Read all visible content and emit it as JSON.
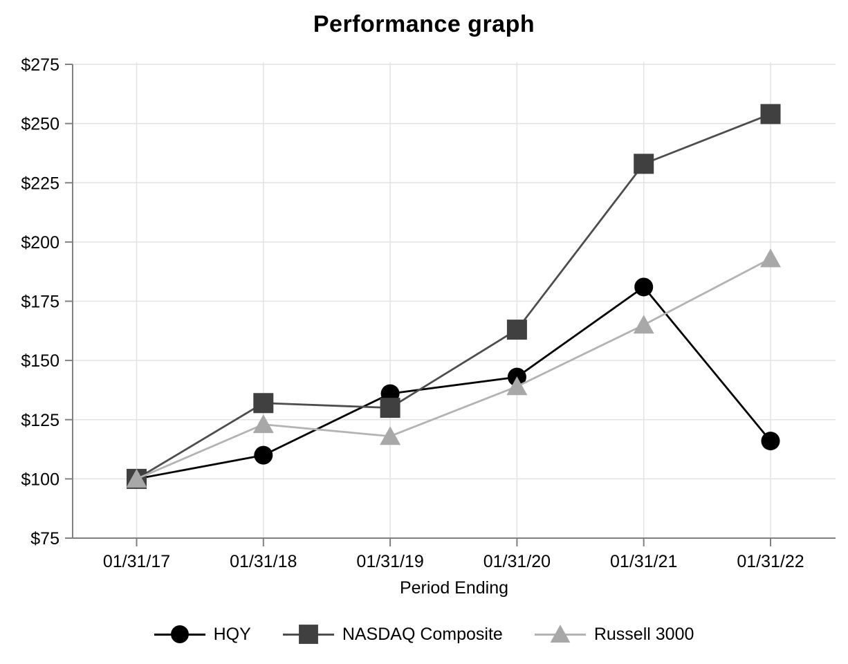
{
  "chart_data": {
    "type": "line",
    "title": "Performance graph",
    "xlabel": "Period Ending",
    "ylabel": "",
    "categories": [
      "01/31/17",
      "01/31/18",
      "01/31/19",
      "01/31/20",
      "01/31/21",
      "01/31/22"
    ],
    "series": [
      {
        "name": "HQY",
        "marker": "circle",
        "marker_color": "#000000",
        "line_color": "#000000",
        "values": [
          100,
          110,
          136,
          143,
          181,
          116
        ]
      },
      {
        "name": "NASDAQ Composite",
        "marker": "square",
        "marker_color": "#404040",
        "line_color": "#4d4d4d",
        "values": [
          100,
          132,
          130,
          163,
          233,
          254
        ]
      },
      {
        "name": "Russell 3000",
        "marker": "triangle",
        "marker_color": "#a8a8a8",
        "line_color": "#b3b3b3",
        "values": [
          100,
          123,
          118,
          139,
          165,
          193
        ]
      }
    ],
    "ylim": [
      75,
      275
    ],
    "y_ticks": [
      75,
      100,
      125,
      150,
      175,
      200,
      225,
      250,
      275
    ],
    "y_tick_labels": [
      "$75",
      "$100",
      "$125",
      "$150",
      "$175",
      "$200",
      "$225",
      "$250",
      "$275"
    ],
    "grid": true,
    "legend_position": "bottom",
    "colors": {
      "axis": "#808080",
      "grid": "#e2e2e2",
      "text": "#000000",
      "background": "#ffffff"
    }
  }
}
